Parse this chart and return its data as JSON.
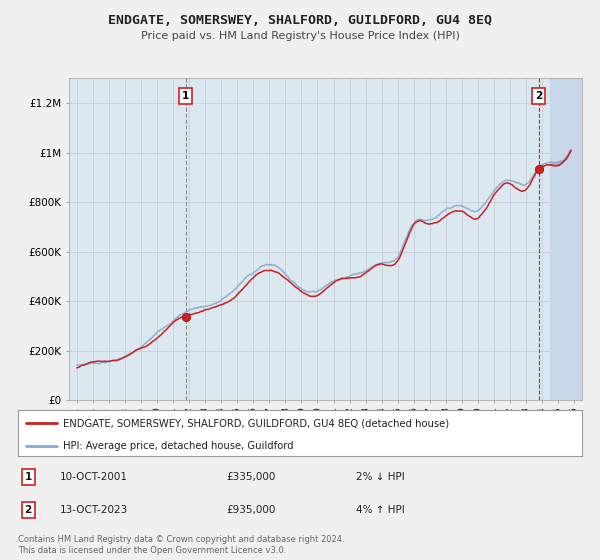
{
  "title": "ENDGATE, SOMERSWEY, SHALFORD, GUILDFORD, GU4 8EQ",
  "subtitle": "Price paid vs. HM Land Registry's House Price Index (HPI)",
  "ylabel_ticks": [
    "£0",
    "£200K",
    "£400K",
    "£600K",
    "£800K",
    "£1M",
    "£1.2M"
  ],
  "ytick_values": [
    0,
    200000,
    400000,
    600000,
    800000,
    1000000,
    1200000
  ],
  "ylim": [
    0,
    1300000
  ],
  "xlim_start": 1994.5,
  "xlim_end": 2026.5,
  "hpi_color": "#88aacc",
  "price_color": "#cc2222",
  "marker1_x": 2001.79,
  "marker1_y": 335000,
  "marker2_x": 2023.79,
  "marker2_y": 935000,
  "future_start": 2024.5,
  "event1_label": "1",
  "event2_label": "2",
  "event1_date": "10-OCT-2001",
  "event1_price": "£335,000",
  "event1_hpi": "2% ↓ HPI",
  "event2_date": "13-OCT-2023",
  "event2_price": "£935,000",
  "event2_hpi": "4% ↑ HPI",
  "legend_label1": "ENDGATE, SOMERSWEY, SHALFORD, GUILDFORD, GU4 8EQ (detached house)",
  "legend_label2": "HPI: Average price, detached house, Guildford",
  "footer1": "Contains HM Land Registry data © Crown copyright and database right 2024.",
  "footer2": "This data is licensed under the Open Government Licence v3.0.",
  "plot_bg_color": "#dce8f0",
  "grid_color": "#bbbbcc",
  "fig_bg_color": "#f0f0f0"
}
